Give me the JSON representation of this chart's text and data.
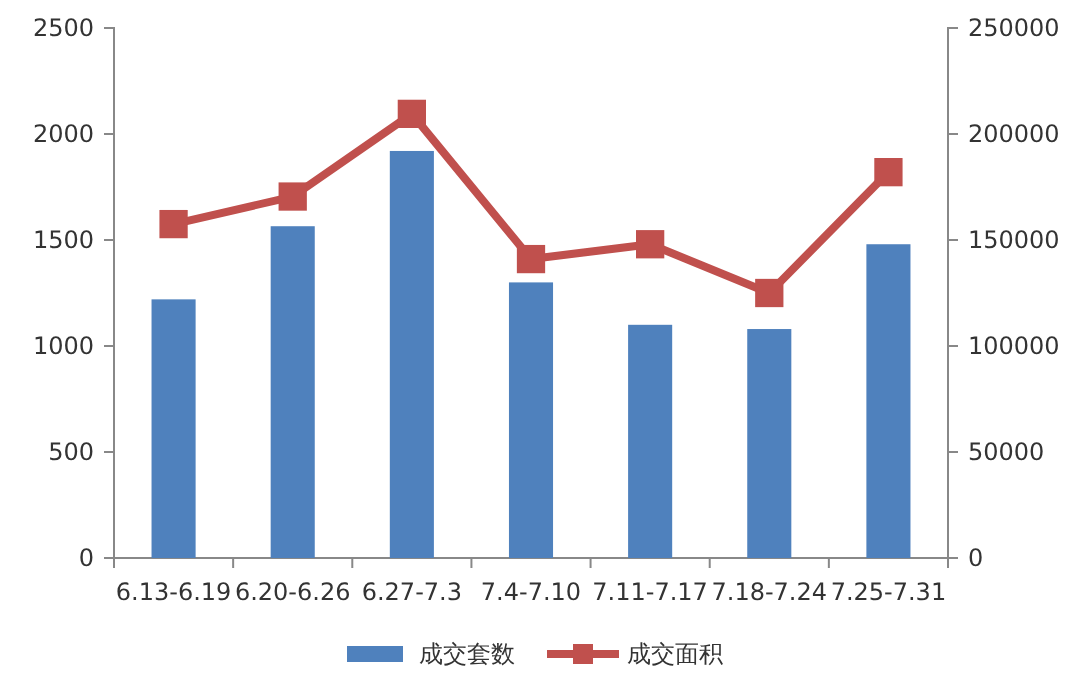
{
  "chart_data": {
    "type": "bar",
    "categories": [
      "6.13-6.19",
      "6.20-6.26",
      "6.27-7.3",
      "7.4-7.10",
      "7.11-7.17",
      "7.18-7.24",
      "7.25-7.31"
    ],
    "series": [
      {
        "name": "成交套数",
        "color": "#4f81bd",
        "values": [
          1220,
          1565,
          1920,
          1300,
          1100,
          1080,
          1480
        ]
      },
      {
        "name": "成交面积",
        "type": "line",
        "axis": "y2",
        "color": "#c0504d",
        "marker": "square",
        "values": [
          157500,
          170500,
          209500,
          141000,
          148000,
          125000,
          182000
        ]
      }
    ],
    "ylim": [
      0,
      2500
    ],
    "yticks": [
      0,
      500,
      1000,
      1500,
      2000,
      2500
    ],
    "y2lim": [
      0,
      250000
    ],
    "y2ticks": [
      0,
      50000,
      100000,
      150000,
      200000,
      250000
    ],
    "grid": false,
    "legend": "bottom"
  }
}
